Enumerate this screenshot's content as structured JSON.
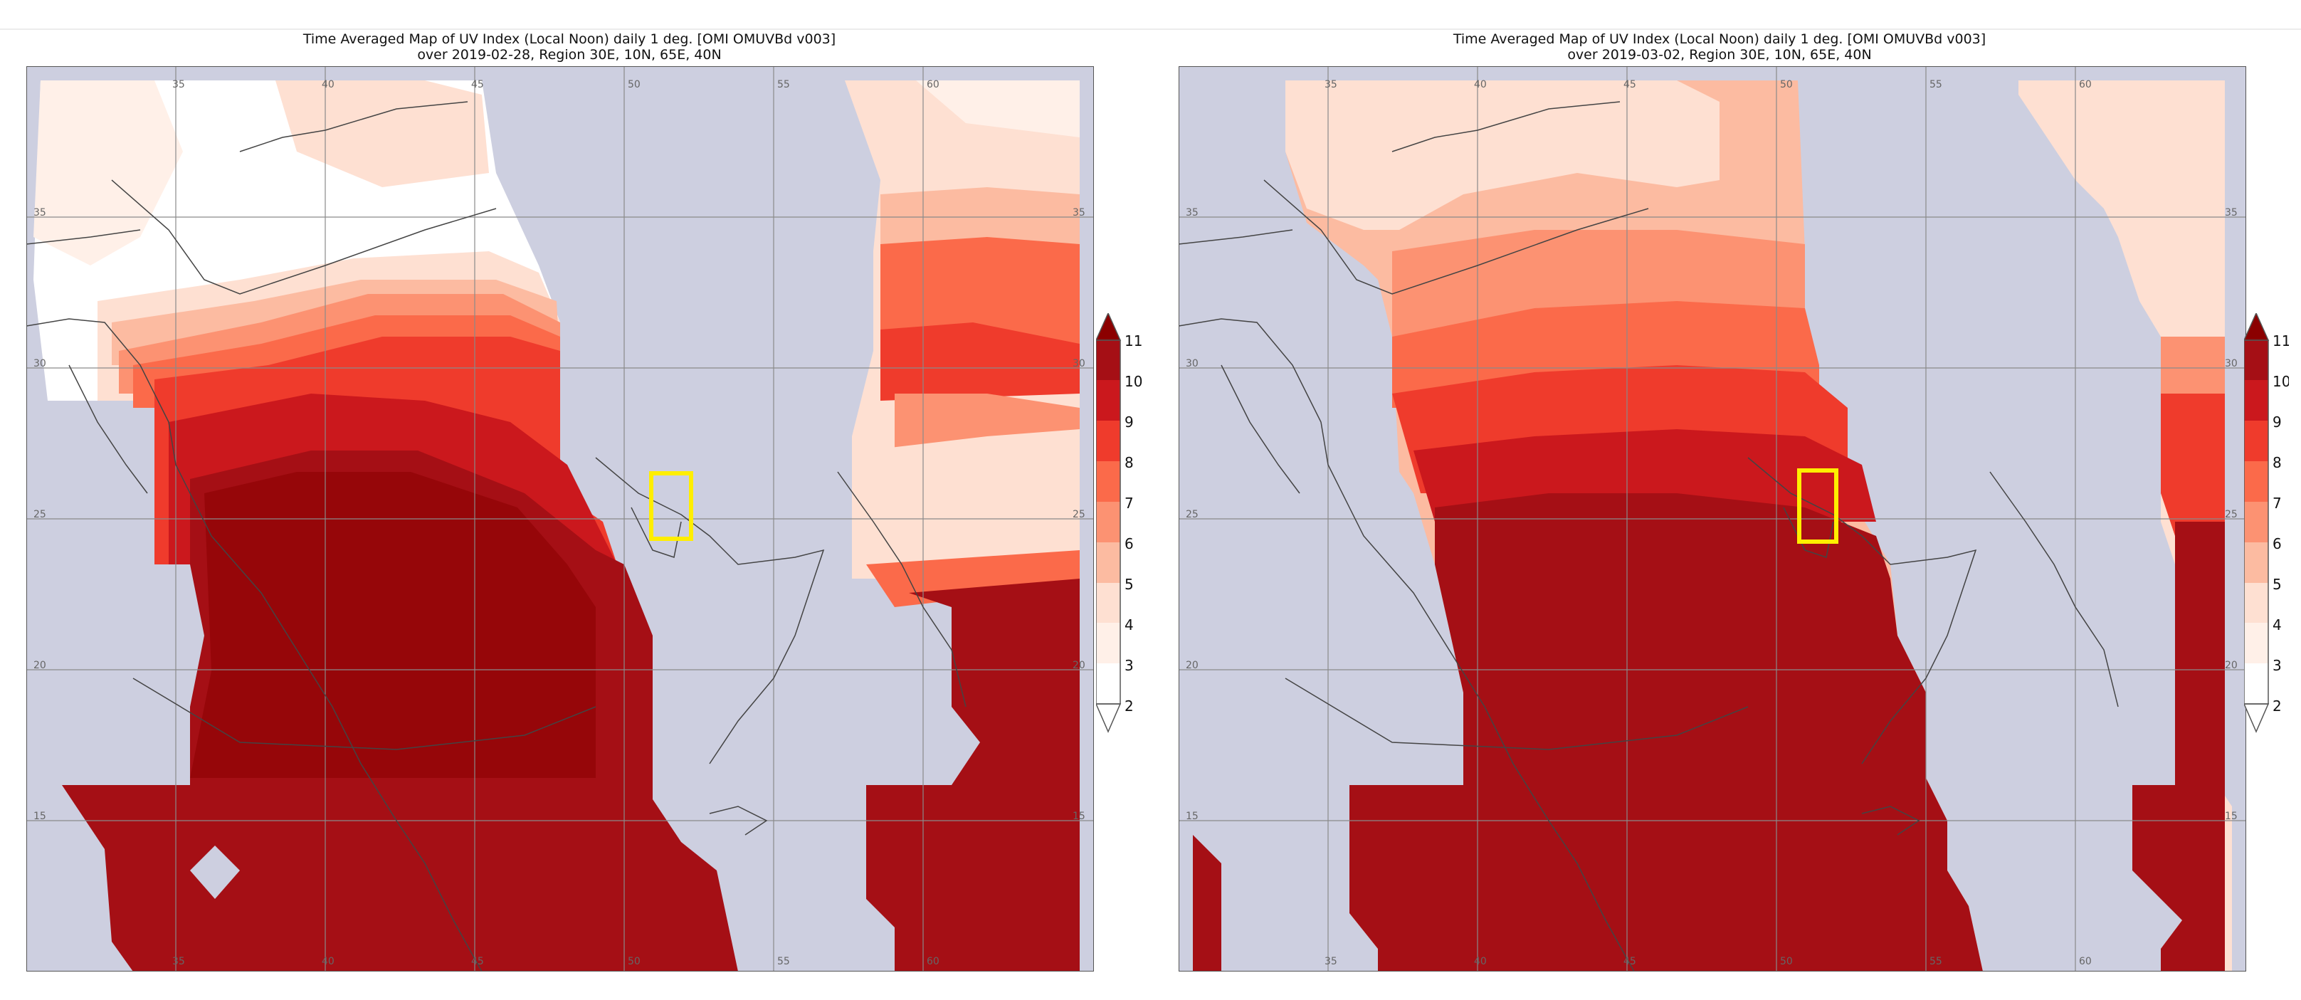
{
  "maps": [
    {
      "title_line1": "Time Averaged Map of UV Index (Local Noon) daily 1 deg. [OMI OMUVBd v003]",
      "title_line2": "over 2019-02-28, Region 30E, 10N, 65E, 40N",
      "highlight_location": "Qatar",
      "lon_labels_top": [
        "35",
        "40",
        "45",
        "50",
        "55",
        "60"
      ],
      "lat_labels": [
        "35",
        "30",
        "25",
        "20",
        "15"
      ],
      "lon_labels_bottom": [
        "35",
        "40",
        "45",
        "50",
        "55",
        "60"
      ]
    },
    {
      "title_line1": "Time Averaged Map of UV Index (Local Noon) daily 1 deg. [OMI OMUVBd v003]",
      "title_line2": "over 2019-03-02, Region 30E, 10N, 65E, 40N",
      "highlight_location": "Qatar",
      "lon_labels_top": [
        "35",
        "40",
        "45",
        "50",
        "55",
        "60"
      ],
      "lat_labels": [
        "35",
        "30",
        "25",
        "20",
        "15"
      ],
      "lon_labels_bottom": [
        "35",
        "40",
        "45",
        "50",
        "55",
        "60"
      ]
    }
  ],
  "colorbar": {
    "ticks": [
      "11",
      "10",
      "9",
      "8",
      "7",
      "6",
      "5",
      "4",
      "3",
      "2"
    ],
    "colors": [
      "#ffffff",
      "#fff0e8",
      "#fee0d2",
      "#fcbba1",
      "#fc9272",
      "#fb6a4a",
      "#ef3b2c",
      "#cb181d",
      "#a50f15",
      "#8b0000"
    ]
  },
  "colors": {
    "no_data": "#cdcfe0",
    "highlight_box": "#ffee00",
    "grid": "#8a8a8a",
    "coastline": "#444444"
  }
}
